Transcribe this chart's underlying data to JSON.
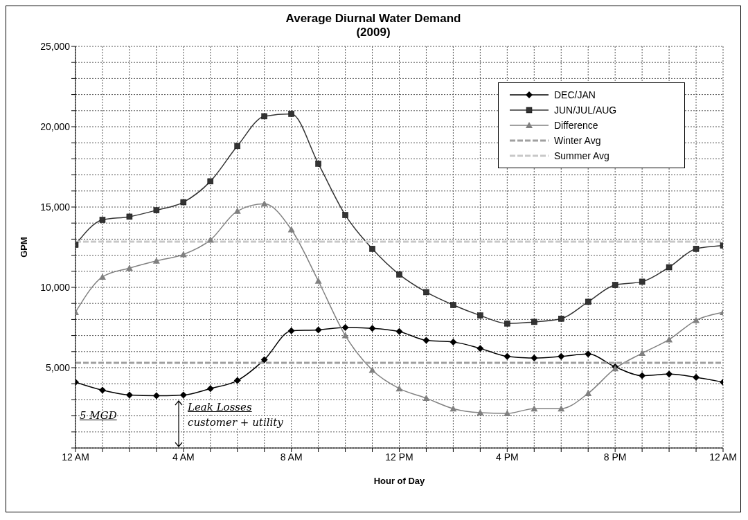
{
  "chart_data": {
    "type": "line",
    "title": "Average Diurnal Water Demand\n(2009)",
    "xlabel": "Hour of Day",
    "ylabel": "GPM",
    "categories": [
      "12 AM",
      null,
      null,
      null,
      "4 AM",
      null,
      null,
      null,
      "8 AM",
      null,
      null,
      null,
      "12 PM",
      null,
      null,
      null,
      "4 PM",
      null,
      null,
      null,
      "8 PM",
      null,
      null,
      null,
      "12 AM"
    ],
    "ylim": [
      0,
      25000
    ],
    "yticks": [
      {
        "value": 0,
        "label": null
      },
      {
        "value": 1000,
        "label": null
      },
      {
        "value": 2000,
        "label": null
      },
      {
        "value": 3000,
        "label": null
      },
      {
        "value": 4000,
        "label": null
      },
      {
        "value": 5000,
        "label": "5,000"
      },
      {
        "value": 6000,
        "label": null
      },
      {
        "value": 7000,
        "label": null
      },
      {
        "value": 8000,
        "label": null
      },
      {
        "value": 9000,
        "label": null
      },
      {
        "value": 10000,
        "label": "10,000"
      },
      {
        "value": 11000,
        "label": null
      },
      {
        "value": 12000,
        "label": null
      },
      {
        "value": 13000,
        "label": null
      },
      {
        "value": 14000,
        "label": null
      },
      {
        "value": 15000,
        "label": "15,000"
      },
      {
        "value": 16000,
        "label": null
      },
      {
        "value": 17000,
        "label": null
      },
      {
        "value": 18000,
        "label": null
      },
      {
        "value": 19000,
        "label": null
      },
      {
        "value": 20000,
        "label": "20,000"
      },
      {
        "value": 21000,
        "label": null
      },
      {
        "value": 22000,
        "label": null
      },
      {
        "value": 23000,
        "label": null
      },
      {
        "value": 24000,
        "label": null
      },
      {
        "value": 25000,
        "label": "25,000"
      }
    ],
    "grid": true,
    "legend": "top right",
    "line_style": "solid",
    "series": [
      {
        "name": "DEC/JAN",
        "color": "#000000",
        "marker": "diamond",
        "values": [
          4100,
          3600,
          3300,
          3250,
          3300,
          3700,
          4200,
          5500,
          7300,
          7350,
          7500,
          7450,
          7250,
          6700,
          6600,
          6200,
          5700,
          5600,
          5700,
          5850,
          5050,
          4500,
          4600,
          4400,
          4100
        ]
      },
      {
        "name": "JUN/JUL/AUG",
        "color": "#333333",
        "marker": "square",
        "values": [
          12650,
          14200,
          14400,
          14800,
          15300,
          16600,
          18800,
          20650,
          20800,
          17700,
          14500,
          12400,
          10800,
          9700,
          8900,
          8250,
          7750,
          7850,
          8050,
          9100,
          10150,
          10350,
          11250,
          12400,
          12600
        ]
      },
      {
        "name": "Difference",
        "color": "#808080",
        "marker": "triangle",
        "values": [
          8450,
          10650,
          11200,
          11650,
          12050,
          12950,
          14750,
          15200,
          13600,
          10400,
          7000,
          4850,
          3700,
          3100,
          2450,
          2200,
          2150,
          2450,
          2450,
          3400,
          4950,
          5900,
          6750,
          7950,
          8450
        ]
      },
      {
        "name": "Winter Avg",
        "color": "#a0a0a0",
        "marker": "none",
        "line_style": "dashed",
        "values": [
          5300,
          5300,
          5300,
          5300,
          5300,
          5300,
          5300,
          5300,
          5300,
          5300,
          5300,
          5300,
          5300,
          5300,
          5300,
          5300,
          5300,
          5300,
          5300,
          5300,
          5300,
          5300,
          5300,
          5300,
          5300
        ]
      },
      {
        "name": "Summer Avg",
        "color": "#c8c8c8",
        "marker": "none",
        "line_style": "dashed",
        "values": [
          12850,
          12850,
          12850,
          12850,
          12850,
          12850,
          12850,
          12850,
          12850,
          12850,
          12850,
          12850,
          12850,
          12850,
          12850,
          12850,
          12850,
          12850,
          12850,
          12850,
          12850,
          12850,
          12850,
          12850,
          12850
        ]
      }
    ],
    "annotations": [
      "5 MGD",
      "Leak Losses",
      "customer + utility"
    ]
  }
}
